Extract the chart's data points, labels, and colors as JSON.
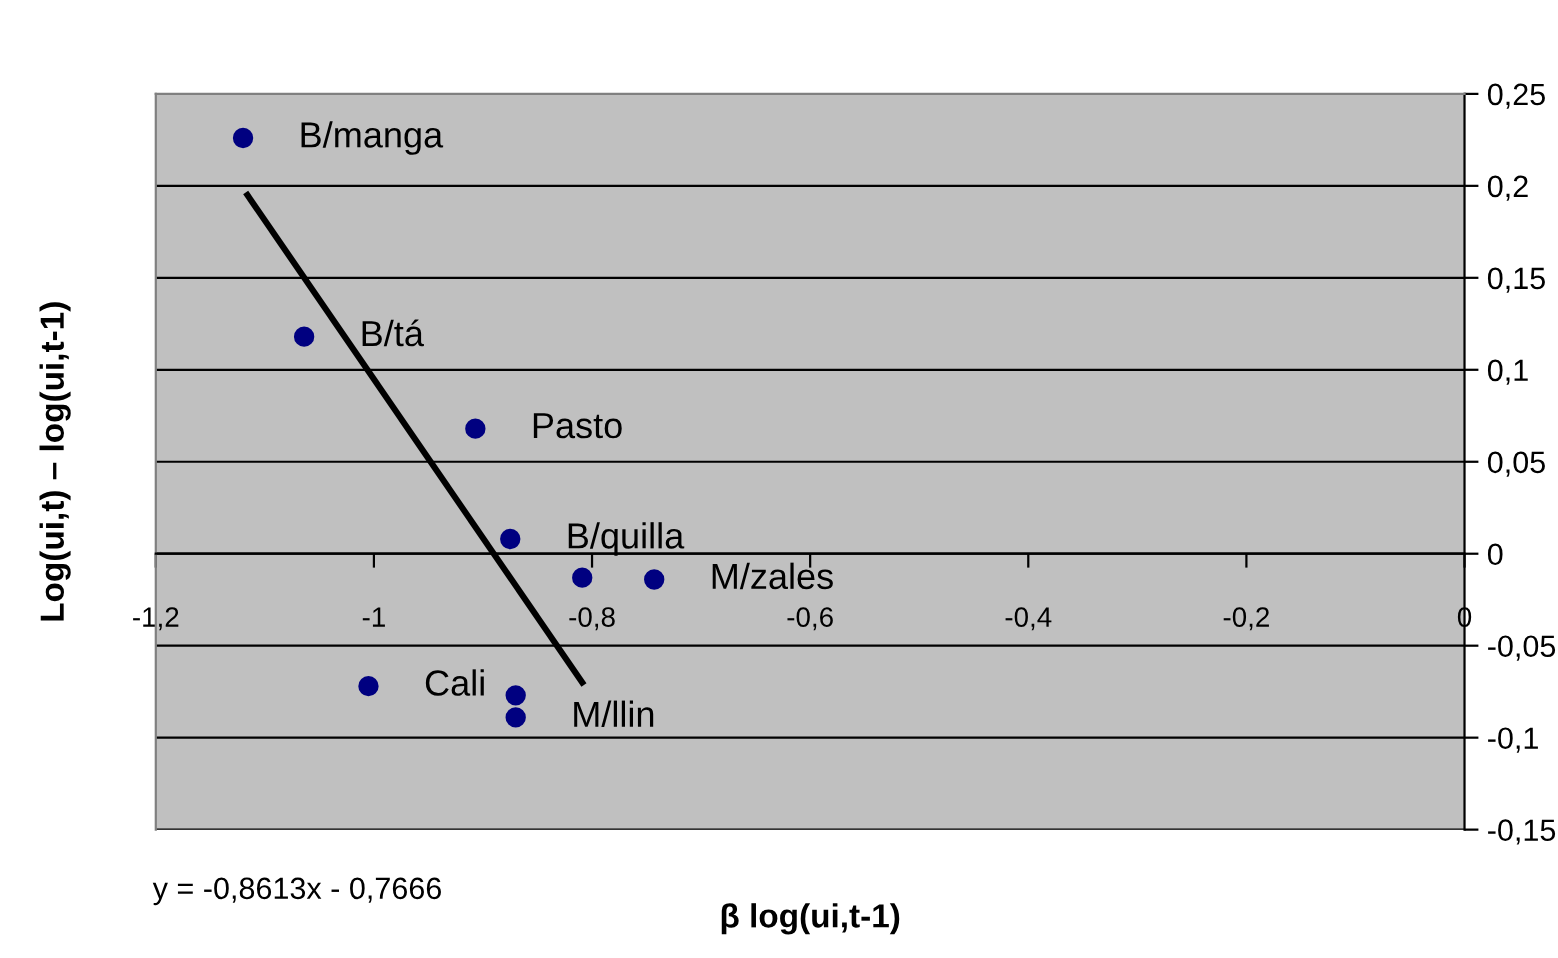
{
  "chart_data": {
    "type": "scatter",
    "xlabel": "β log(ui,t-1)",
    "ylabel": "Log(ui,t) – log(ui,t-1)",
    "series": [
      {
        "color": "#000080",
        "marker": "circle",
        "x": [
          -1.12,
          -1.064,
          -0.907,
          -0.875,
          -0.809,
          -0.743,
          -1.005,
          -0.87,
          -0.87
        ],
        "values": [
          0.226,
          0.118,
          0.068,
          0.008,
          -0.013,
          -0.014,
          -0.072,
          -0.077,
          -0.089
        ]
      },
      {
        "type": "line",
        "color": "#000000",
        "marker": "none",
        "line_style": "solid",
        "x": [
          -1.116,
          -0.809
        ],
        "values": [
          0.195,
          -0.07
        ]
      }
    ],
    "annotations": [
      {
        "text": "B/manga",
        "x": -1.12,
        "y": 0.226
      },
      {
        "text": "B/tá",
        "x": -1.064,
        "y": 0.118
      },
      {
        "text": "Pasto",
        "x": -0.907,
        "y": 0.068
      },
      {
        "text": "B/quilla",
        "x": -0.875,
        "y": 0.008
      },
      {
        "text": "M/zales",
        "x": -0.743,
        "y": -0.014
      },
      {
        "text": "Cali",
        "x": -1.005,
        "y": -0.072
      },
      {
        "text": "M/llin",
        "x": -0.87,
        "y": -0.089
      },
      "y = -0,8613x - 0,7666"
    ],
    "xlim": [
      -1.2,
      0
    ],
    "ylim": [
      -0.15,
      0.25
    ],
    "xticks": [
      {
        "value": -1.2,
        "label": "-1,2"
      },
      -1,
      {
        "value": -0.8,
        "label": "-0,8"
      },
      {
        "value": -0.6,
        "label": "-0,6"
      },
      {
        "value": -0.4,
        "label": "-0,4"
      },
      {
        "value": -0.2,
        "label": "-0,2"
      },
      0
    ],
    "yticks": [
      {
        "value": -0.15,
        "label": "-0,15"
      },
      {
        "value": -0.1,
        "label": "-0,1"
      },
      {
        "value": -0.05,
        "label": "-0,05"
      },
      0,
      {
        "value": 0.05,
        "label": "0,05"
      },
      {
        "value": 0.1,
        "label": "0,1"
      },
      {
        "value": 0.15,
        "label": "0,15"
      },
      {
        "value": 0.2,
        "label": "0,2"
      },
      {
        "value": 0.25,
        "label": "0,25"
      }
    ],
    "grid": "y",
    "legend": false
  }
}
